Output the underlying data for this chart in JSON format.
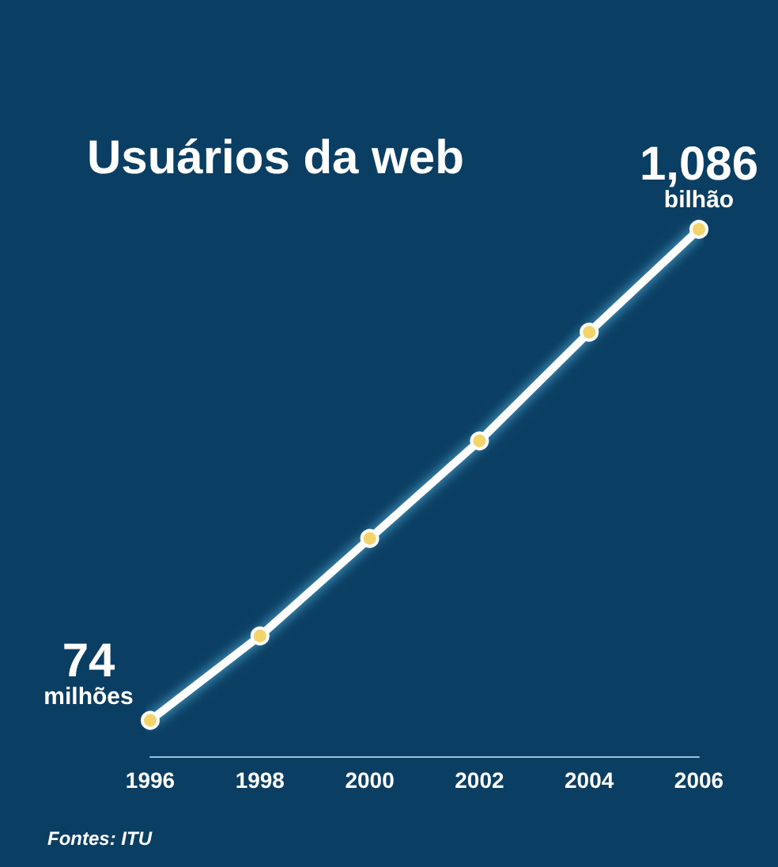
{
  "chart_data": {
    "type": "line",
    "title": "Usuários da web",
    "categories": [
      "1996",
      "1998",
      "2000",
      "2002",
      "2004",
      "2006"
    ],
    "series": [
      {
        "color": "#ffffff",
        "values": [
          74,
          248,
          449,
          650,
          874,
          1086
        ],
        "value_labels": [
          "74 milhões",
          null,
          null,
          null,
          null,
          "1,086 bilhão"
        ]
      }
    ],
    "grid": false,
    "marker": "circle",
    "line_style": "solid",
    "annotations": [
      "Fontes: ITU"
    ]
  }
}
